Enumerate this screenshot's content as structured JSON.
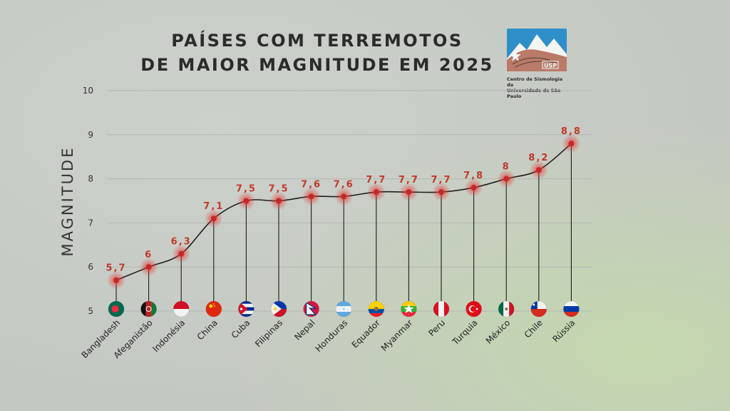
{
  "title": {
    "line1": "PAÍSES COM TERREMOTOS",
    "line2": "DE MAIOR MAGNITUDE EM 2025"
  },
  "logo": {
    "mark_text": "USP",
    "caption_line1": "Centro de Sismologia da",
    "caption_line2": "Universidade de São Paulo"
  },
  "colors": {
    "line": "#1e1e1e",
    "point": "#c62828",
    "label": "#c0392b",
    "grid": "#b3b7b1"
  },
  "chart_data": {
    "type": "line",
    "title": "PAÍSES COM TERREMOTOS DE MAIOR MAGNITUDE EM 2025",
    "xlabel": "",
    "ylabel": "MAGNITUDE",
    "ylim": [
      5,
      10
    ],
    "yticks": [
      "5",
      "6",
      "7",
      "8",
      "9",
      "10"
    ],
    "grid": true,
    "categories": [
      "Bangladesh",
      "Afeganistão",
      "Indonésia",
      "China",
      "Cuba",
      "Filipinas",
      "Nepal",
      "Honduras",
      "Equador",
      "Myanmar",
      "Peru",
      "Turquia",
      "México",
      "Chile",
      "Rússia"
    ],
    "values": [
      5.7,
      6,
      6.3,
      7.1,
      7.5,
      7.5,
      7.6,
      7.6,
      7.7,
      7.7,
      7.7,
      7.8,
      8,
      8.2,
      8.8
    ],
    "value_labels": [
      "5,7",
      "6",
      "6,3",
      "7,1",
      "7,5",
      "7,5",
      "7,6",
      "7,6",
      "7,7",
      "7,7",
      "7,7",
      "7,8",
      "8",
      "8,2",
      "8,8"
    ],
    "flags": [
      "bangladesh-flag-icon",
      "afghanistan-flag-icon",
      "indonesia-flag-icon",
      "china-flag-icon",
      "cuba-flag-icon",
      "philippines-flag-icon",
      "nepal-flag-icon",
      "honduras-flag-icon",
      "ecuador-flag-icon",
      "myanmar-flag-icon",
      "peru-flag-icon",
      "turkey-flag-icon",
      "mexico-flag-icon",
      "chile-flag-icon",
      "russia-flag-icon"
    ]
  }
}
